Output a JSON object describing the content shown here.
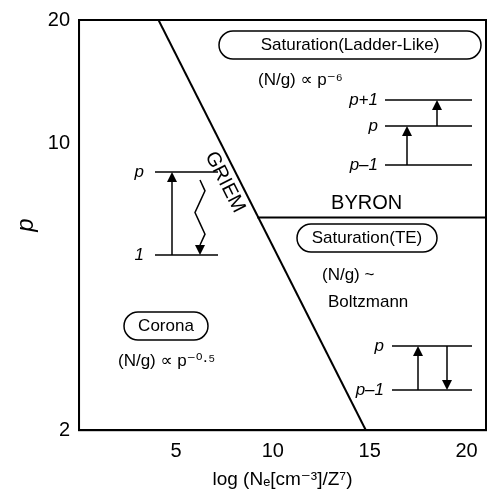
{
  "chart_data": {
    "type": "line",
    "x_label": "log (Nₑ[cm⁻³]/Z⁷)",
    "y_label": "p",
    "xlim": [
      0,
      21
    ],
    "xticks": [
      5,
      10,
      15,
      20
    ],
    "ylim": [
      2,
      20
    ],
    "yticks": [
      2,
      10,
      20
    ],
    "log": "y",
    "grid": false,
    "series": [
      {
        "name": "GRIEM",
        "color": "#000000",
        "x": [
          4.1,
          14.8
        ],
        "values": [
          20,
          2
        ]
      },
      {
        "name": "BYRON",
        "color": "#000000",
        "x": [
          9.2,
          21
        ],
        "values": [
          6.6,
          6.6
        ]
      }
    ],
    "annotations": [
      "Saturation(Ladder-Like)",
      "(N/g) ∝ p⁻⁶",
      "Saturation(TE)",
      "(N/g) ~",
      "Boltzmann",
      "Corona",
      "(N/g) ∝ p⁻⁰·⁵"
    ],
    "level_diagrams": [
      {
        "levels": [
          "p+1",
          "p",
          "p–1"
        ]
      },
      {
        "levels": [
          "p",
          "p–1"
        ]
      },
      {
        "levels": [
          "p",
          "1"
        ]
      }
    ]
  }
}
